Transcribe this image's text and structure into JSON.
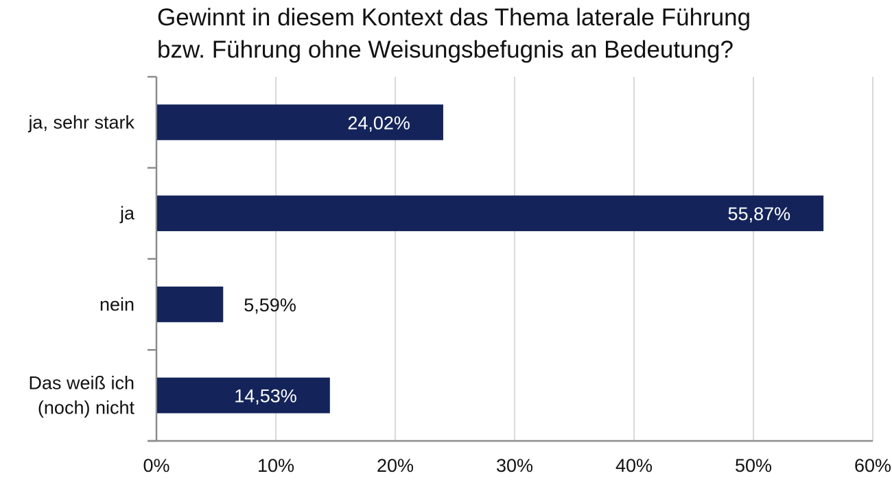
{
  "chart_data": {
    "type": "bar",
    "orientation": "horizontal",
    "title_lines": [
      "Gewinnt in diesem Kontext das Thema laterale Führung",
      "bzw. Führung ohne Weisungsbefugnis an Bedeutung?"
    ],
    "categories": [
      "ja, sehr stark",
      "ja",
      "nein",
      "Das weiß ich (noch) nicht"
    ],
    "category_lines": [
      [
        "ja, sehr stark"
      ],
      [
        "ja"
      ],
      [
        "nein"
      ],
      [
        "Das weiß ich",
        "(noch) nicht"
      ]
    ],
    "values": [
      24.02,
      55.87,
      5.59,
      14.53
    ],
    "value_labels": [
      "24,02%",
      "55,87%",
      "5,59%",
      "14,53%"
    ],
    "xlim": [
      0,
      60
    ],
    "x_ticks": [
      0,
      10,
      20,
      30,
      40,
      50,
      60
    ],
    "x_tick_labels": [
      "0%",
      "10%",
      "20%",
      "30%",
      "40%",
      "50%",
      "60%"
    ],
    "grid": true,
    "bar_color": "#14245a",
    "grid_color": "#d9d9d9",
    "axis_color": "#8c8c8c"
  }
}
